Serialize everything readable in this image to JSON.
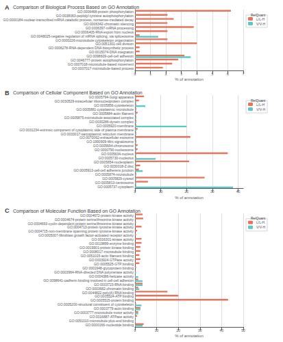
{
  "chart_data": [
    {
      "type": "bar",
      "orientation": "horizontal",
      "title": "Comparison of Biological Process Based on GO Annotation",
      "annotations": [
        "A"
      ],
      "categories": [
        "GO:0006468-protein phosphorylation",
        "GO:0038063-peptidyl-tyrosine autophosphorylation",
        "GO:0000184-nuclear-transcribed mRNA catabolic process, nonsense-mediated decay",
        "GO:0006342-chromatin silencing",
        "GO:0006397-mRNA processing",
        "GO:0006405-RNA export from nucleus",
        "GO:0048025-negative regulation of mRNA splicing, via spliceosome",
        "GO:0000226-microtubule cytoskeleton organization",
        "GO:0051301-cell division",
        "GO:0006278-RNA-dependent DNA biosynthetic process",
        "GO:0015074-DNA integration",
        "GO:0098609-cell-cell adhesion",
        "GO:0046777-protein autophosphorylation",
        "GO:0007018-microtubule-based movement",
        "GO:0007017-microtubule-based process"
      ],
      "series": [
        {
          "name": "L/L-H",
          "color": "#E8735A",
          "values": [
            6.2,
            2.1,
            2.5,
            2.1,
            3.8,
            2.1,
            0.3,
            2.1,
            4.0,
            0.3,
            0.3,
            3.2,
            2.8,
            2.4,
            1.8
          ]
        },
        {
          "name": "V/V-H",
          "color": "#5BC8C8",
          "values": [
            0.0,
            0.0,
            0.0,
            0.0,
            0.0,
            0.0,
            1.5,
            0.0,
            0.0,
            0.0,
            0.0,
            3.6,
            0.0,
            0.0,
            0.0
          ]
        }
      ],
      "xlim": [
        0,
        7
      ],
      "xticks": [
        0,
        1,
        2,
        3,
        4,
        5,
        6,
        7
      ],
      "xlabel": "% of annotation",
      "grid": true,
      "legend": "right",
      "legend_title": "RelQuant"
    },
    {
      "type": "bar",
      "orientation": "horizontal",
      "title": "Comparison of Cellular Component Based on GO Annotation",
      "annotations": [
        "B"
      ],
      "categories": [
        "GO:0005794-Golgi apparatus",
        "GO:0030529-intracellular ribonucleoprotein complex",
        "GO:0005856-cytoskeleton",
        "GO:0005881-cytoplasmic microtubule",
        "GO:0005884-actin filament",
        "GO:0005875-microtubule associated complex",
        "GO:0030286-dynein complex",
        "GO:0005920-membrane",
        "GO:0031234-extrinsic component of cytoplasmic side of plasma membrane",
        "GO:0033017-sarcoplasmic reticulum membrane",
        "GO:0070062-extracellular exosome",
        "GO:1990909-Wnt signalosome",
        "GO:0005694-chromosome",
        "GO:0000790-nucleosome",
        "GO:0005634-nucleus",
        "GO:0005730-nucleolus",
        "GO:0005654-nucleoplasm",
        "GO:0030018-Z disc",
        "GO:0005913-cell-cell adherens junction",
        "GO:0005874-microtubule",
        "GO:0005829-cytosol",
        "GO:0005813-centrosome",
        "GO:0005737-cytoplasm"
      ],
      "series": [
        {
          "name": "L/L-H",
          "color": "#E8735A",
          "values": [
            3.5,
            1.5,
            0.5,
            0.5,
            1.0,
            0.5,
            0.5,
            0.5,
            1.0,
            0.5,
            21.5,
            0.5,
            1.0,
            1.0,
            36.0,
            0.5,
            21.0,
            2.0,
            1.5,
            0.5,
            27.0,
            5.0,
            0.5
          ]
        },
        {
          "name": "V/V-H",
          "color": "#5BC8C8",
          "values": [
            0.5,
            0.5,
            4.0,
            0.5,
            0.5,
            0.5,
            0.5,
            20.0,
            0.5,
            0.5,
            0.5,
            0.5,
            0.5,
            0.5,
            0.5,
            8.0,
            0.5,
            0.5,
            3.0,
            0.5,
            0.5,
            0.5,
            38.0
          ]
        }
      ],
      "xlim": [
        0,
        42
      ],
      "xticks": [
        0,
        10,
        20,
        30,
        40
      ],
      "xlabel": "% of annotation",
      "grid": true,
      "legend": "right",
      "legend_title": "RelQuant"
    },
    {
      "type": "bar",
      "orientation": "horizontal",
      "title": "Comparison of Molecular Function Based on GO Annotation",
      "annotations": [
        "C"
      ],
      "categories": [
        "GO:0004672-protein kinase activity",
        "GO:0004674-protein serine/threonine kinase activity",
        "GO:0004693-cyclin-dependent protein serine/threonine kinase activity",
        "GO:0004713-protein tyrosine kinase activity",
        "GO:0004715-non-membrane spanning protein tyrosine kinase activity",
        "GO:0005007-fibroblast growth factor-activated receptor activity",
        "GO:0016301-kinase activity",
        "GO:0019899-enzyme binding",
        "GO:0019901-protein kinase binding",
        "GO:0008017-microtubule binding",
        "GO:0051015-actin filament binding",
        "GO:0003924-GTPase activity",
        "GO:0005525-GTP binding",
        "GO:0001948-glycoprotein binding",
        "GO:0003964-RNA-directed DNA polymerase activity",
        "GO:0004386-helicase activity",
        "GO:0098641-cadherin binding involved in cell-cell adhesion",
        "GO:0003723-RNA binding",
        "GO:0003682-chromatin binding",
        "GO:0044822-poly(A) RNA binding",
        "GO:0005524-ATP binding",
        "GO:0005515-protein binding",
        "GO:0005200-structural constituent of cytoskeleton",
        "GO:0003779-actin binding",
        "GO:0003777-microtubule motor activity",
        "GO:0016887-ATPase activity",
        "GO:0051010-microtubule plus-end binding",
        "GO:0000166-nucleotide binding"
      ],
      "series": [
        {
          "name": "L/L-H",
          "color": "#E8735A",
          "values": [
            3.5,
            3.8,
            0.5,
            3.0,
            1.0,
            0.5,
            3.0,
            3.0,
            2.5,
            2.5,
            2.0,
            2.5,
            2.0,
            0.5,
            0.3,
            0.3,
            1.5,
            3.5,
            1.5,
            15.0,
            20.0,
            43.0,
            0.5,
            2.5,
            1.5,
            1.0,
            0.3,
            4.0
          ]
        },
        {
          "name": "V/V-H",
          "color": "#5BC8C8",
          "values": [
            0.0,
            0.0,
            0.0,
            0.0,
            0.0,
            0.0,
            0.0,
            0.0,
            0.0,
            0.0,
            0.0,
            0.0,
            0.0,
            0.0,
            0.5,
            1.5,
            3.5,
            3.5,
            2.0,
            0.3,
            0.3,
            0.3,
            3.0,
            2.5,
            1.5,
            0.3,
            0.3,
            3.5
          ]
        }
      ],
      "xlim": [
        0,
        50
      ],
      "xticks": [
        0,
        10,
        20,
        30,
        40,
        50
      ],
      "xlabel": "% of annotation",
      "grid": true,
      "legend": "right",
      "legend_title": "RelQuant"
    }
  ]
}
